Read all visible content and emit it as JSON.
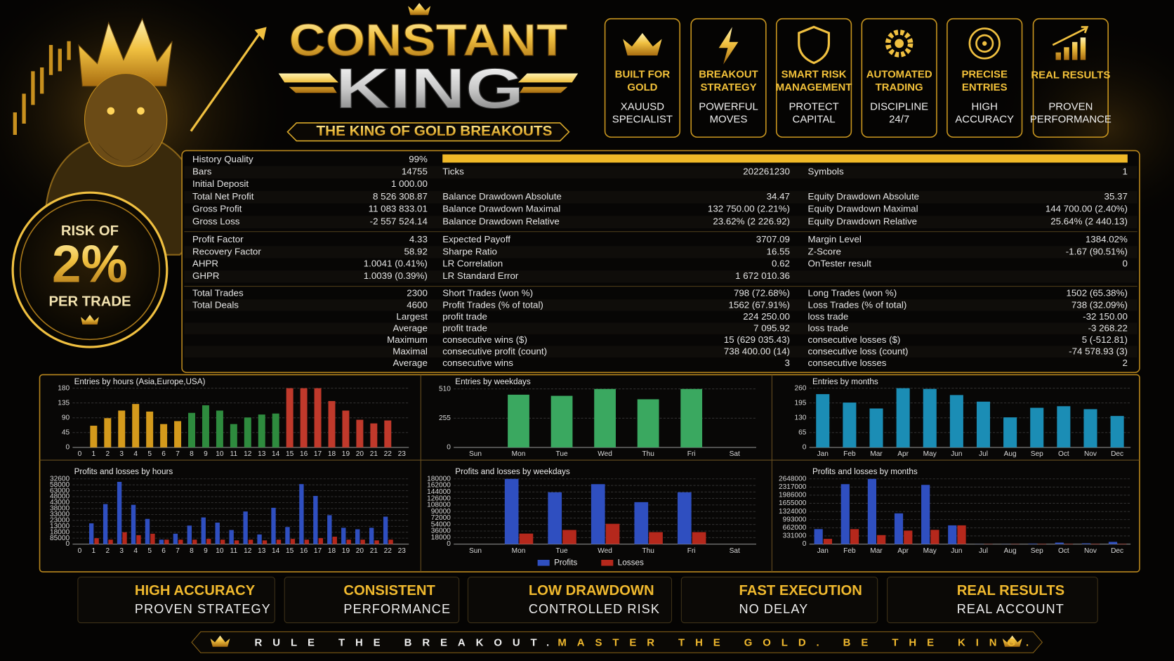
{
  "header": {
    "title_1": "CONSTANT",
    "title_2": "KING",
    "tagline": "THE KING OF GOLD BREAKOUTS"
  },
  "risk_badge": {
    "line_1": "RISK OF",
    "value": "2%",
    "line_2": "PER TRADE"
  },
  "features": [
    {
      "title": [
        "BUILT FOR",
        "GOLD"
      ],
      "subtitle": [
        "XAUUSD",
        "SPECIALIST"
      ]
    },
    {
      "title": [
        "BREAKOUT",
        "STRATEGY"
      ],
      "subtitle": [
        "POWERFUL",
        "MOVES"
      ]
    },
    {
      "title": [
        "SMART RISK",
        "MANAGEMENT"
      ],
      "subtitle": [
        "PROTECT",
        "CAPITAL"
      ]
    },
    {
      "title": [
        "AUTOMATED",
        "TRADING"
      ],
      "subtitle": [
        "DISCIPLINE",
        "24/7"
      ]
    },
    {
      "title": [
        "PRECISE",
        "ENTRIES"
      ],
      "subtitle": [
        "HIGH",
        "ACCURACY"
      ]
    },
    {
      "title": [
        "REAL RESULTS"
      ],
      "subtitle": [
        "PROVEN",
        "PERFORMANCE"
      ]
    }
  ],
  "stats": {
    "sections": [
      {
        "rows": [
          [
            [
              "History Quality",
              "99%"
            ],
            null,
            null
          ],
          [
            [
              "Bars",
              "14755"
            ],
            [
              "Ticks",
              "202261230"
            ],
            [
              "Symbols",
              "1"
            ]
          ],
          [
            [
              "Initial Deposit",
              "1 000.00"
            ],
            null,
            null
          ],
          [
            [
              "Total Net Profit",
              "8 526 308.87"
            ],
            [
              "Balance Drawdown Absolute",
              "34.47"
            ],
            [
              "Equity Drawdown Absolute",
              "35.37"
            ]
          ],
          [
            [
              "Gross Profit",
              "11 083 833.01"
            ],
            [
              "Balance Drawdown Maximal",
              "132 750.00 (2.21%)"
            ],
            [
              "Equity Drawdown Maximal",
              "144 700.00 (2.40%)"
            ]
          ],
          [
            [
              "Gross Loss",
              "-2 557 524.14"
            ],
            [
              "Balance Drawdown Relative",
              "23.62% (2 226.92)"
            ],
            [
              "Equity Drawdown Relative",
              "25.64% (2 440.13)"
            ]
          ]
        ]
      },
      {
        "rows": [
          [
            [
              "Profit Factor",
              "4.33"
            ],
            [
              "Expected Payoff",
              "3707.09"
            ],
            [
              "Margin Level",
              "1384.02%"
            ]
          ],
          [
            [
              "Recovery Factor",
              "58.92"
            ],
            [
              "Sharpe Ratio",
              "16.55"
            ],
            [
              "Z-Score",
              "-1.67 (90.51%)"
            ]
          ],
          [
            [
              "AHPR",
              "1.0041 (0.41%)"
            ],
            [
              "LR Correlation",
              "0.62"
            ],
            [
              "OnTester result",
              "0"
            ]
          ],
          [
            [
              "GHPR",
              "1.0039 (0.39%)"
            ],
            [
              "LR Standard Error",
              "1 672 010.36"
            ],
            null
          ]
        ]
      },
      {
        "rows": [
          [
            [
              "Total Trades",
              "2300"
            ],
            [
              "Short Trades (won %)",
              "798 (72.68%)"
            ],
            [
              "Long Trades (won %)",
              "1502 (65.38%)"
            ]
          ],
          [
            [
              "Total Deals",
              "4600"
            ],
            [
              "Profit Trades (% of total)",
              "1562 (67.91%)"
            ],
            [
              "Loss Trades (% of total)",
              "738 (32.09%)"
            ]
          ],
          [
            [
              null,
              "Largest"
            ],
            [
              "profit trade",
              "224 250.00"
            ],
            [
              "loss trade",
              "-32 150.00"
            ]
          ],
          [
            [
              null,
              "Average"
            ],
            [
              "profit trade",
              "7 095.92"
            ],
            [
              "loss trade",
              "-3 268.22"
            ]
          ],
          [
            [
              null,
              "Maximum"
            ],
            [
              "consecutive wins ($)",
              "15 (629 035.43)"
            ],
            [
              "consecutive losses ($)",
              "5 (-512.81)"
            ]
          ],
          [
            [
              null,
              "Maximal"
            ],
            [
              "consecutive profit (count)",
              "738 400.00 (14)"
            ],
            [
              "consecutive loss (count)",
              "-74 578.93 (3)"
            ]
          ],
          [
            [
              null,
              "Average"
            ],
            [
              "consecutive wins",
              "3"
            ],
            [
              "consecutive losses",
              "2"
            ]
          ]
        ]
      }
    ]
  },
  "charts": [
    {
      "type": "bar",
      "title": "Entries by hours (Asia,Europe,USA)",
      "categories": [
        "0",
        "1",
        "2",
        "3",
        "4",
        "5",
        "6",
        "7",
        "8",
        "9",
        "10",
        "11",
        "12",
        "13",
        "14",
        "15",
        "16",
        "17",
        "18",
        "19",
        "20",
        "21",
        "22",
        "23"
      ],
      "values": [
        0,
        66,
        89,
        112,
        132,
        109,
        71,
        80,
        105,
        128,
        112,
        71,
        91,
        100,
        103,
        180,
        180,
        180,
        141,
        112,
        84,
        73,
        82,
        0
      ],
      "colors": [
        "#d49a1c",
        "#d49a1c",
        "#d49a1c",
        "#d49a1c",
        "#d49a1c",
        "#d49a1c",
        "#d49a1c",
        "#d49a1c",
        "#2e8b3e",
        "#2e8b3e",
        "#2e8b3e",
        "#2e8b3e",
        "#2e8b3e",
        "#2e8b3e",
        "#2e8b3e",
        "#c0392b",
        "#c0392b",
        "#c0392b",
        "#c0392b",
        "#c0392b",
        "#c0392b",
        "#c0392b",
        "#c0392b",
        "#c0392b"
      ],
      "ylim": [
        0,
        180
      ],
      "yticks": [
        0,
        45,
        90,
        135,
        180
      ],
      "grid": true
    },
    {
      "type": "bar",
      "title": "Entries by weekdays",
      "categories": [
        "Sun",
        "Mon",
        "Tue",
        "Wed",
        "Thu",
        "Fri",
        "Sat"
      ],
      "values": [
        0,
        460,
        450,
        510,
        420,
        510,
        0
      ],
      "color": "#3aa860",
      "ylim": [
        0,
        510
      ],
      "yticks": [
        0,
        255,
        510
      ],
      "grid": true
    },
    {
      "type": "bar",
      "title": "Entries by months",
      "categories": [
        "Jan",
        "Feb",
        "Mar",
        "Apr",
        "May",
        "Jun",
        "Jul",
        "Aug",
        "Sep",
        "Oct",
        "Nov",
        "Dec"
      ],
      "values": [
        234,
        197,
        171,
        260,
        257,
        230,
        201,
        132,
        174,
        181,
        168,
        138
      ],
      "color": "#1b8db5",
      "ylim": [
        0,
        260
      ],
      "yticks": [
        0,
        65,
        130,
        195,
        260
      ],
      "grid": true
    },
    {
      "type": "bar",
      "title": "Profits and losses by hours",
      "categories": [
        "0",
        "1",
        "2",
        "3",
        "4",
        "5",
        "6",
        "7",
        "8",
        "9",
        "10",
        "11",
        "12",
        "13",
        "14",
        "15",
        "16",
        "17",
        "18",
        "19",
        "20",
        "21",
        "22",
        "23"
      ],
      "series": [
        {
          "color": "#2f4fc0",
          "values": [
            0,
            21000,
            40500,
            63000,
            39750,
            25500,
            4500,
            10500,
            18750,
            27000,
            21750,
            14250,
            33000,
            9750,
            36750,
            17250,
            60750,
            48750,
            29250,
            16500,
            15000,
            16500,
            27750,
            0
          ]
        },
        {
          "color": "#b5281c",
          "values": [
            0,
            6000,
            4500,
            12000,
            9000,
            10500,
            4500,
            4500,
            4500,
            5250,
            4500,
            3750,
            4500,
            3750,
            4500,
            5250,
            4500,
            6000,
            7500,
            4500,
            4500,
            3750,
            4500,
            0
          ]
        }
      ],
      "ylim": [
        0,
        66000
      ],
      "yticks": [
        0,
        {
          "value": 6000,
          "label": "85000"
        },
        {
          "value": 12000,
          "label": "18000"
        },
        {
          "value": 18000,
          "label": "13000"
        },
        {
          "value": 24000,
          "label": "23000"
        },
        {
          "value": 30000,
          "label": "33000"
        },
        {
          "value": 36000,
          "label": "38000"
        },
        {
          "value": 42000,
          "label": "43000"
        },
        {
          "value": 48000,
          "label": "48000"
        },
        {
          "value": 54000,
          "label": "63000"
        },
        {
          "value": 60000,
          "label": "58000"
        },
        {
          "value": 66000,
          "label": "32600"
        }
      ],
      "grid": true
    },
    {
      "type": "bar",
      "title": "Profits and losses by weekdays",
      "categories": [
        "Sun",
        "Mon",
        "Tue",
        "Wed",
        "Thu",
        "Fri",
        "Sat"
      ],
      "series": [
        {
          "name": "Profits",
          "color": "#2f4fc0",
          "values": [
            0,
            180000,
            143000,
            165500,
            115800,
            143000,
            0
          ]
        },
        {
          "name": "Losses",
          "color": "#b5281c",
          "values": [
            0,
            29000,
            39000,
            56000,
            33000,
            33000,
            0
          ]
        }
      ],
      "ylim": [
        0,
        180000
      ],
      "yticks": [
        0,
        18000,
        36000,
        54000,
        72000,
        90000,
        108000,
        126000,
        144000,
        162000,
        180000
      ],
      "grid": true
    },
    {
      "type": "bar",
      "title": "Profits and losses by months",
      "categories": [
        "Jan",
        "Feb",
        "Mar",
        "Apr",
        "May",
        "Jun",
        "Jul",
        "Aug",
        "Sep",
        "Oct",
        "Nov",
        "Dec"
      ],
      "series": [
        {
          "color": "#2f4fc0",
          "values": [
            609000,
            2435000,
            2648000,
            1248000,
            2405000,
            761000,
            5000,
            5000,
            20000,
            60000,
            30000,
            90000
          ]
        },
        {
          "color": "#b5281c",
          "values": [
            213000,
            609000,
            365000,
            548000,
            578000,
            761000,
            10000,
            10000,
            15000,
            15000,
            15000,
            15000
          ]
        }
      ],
      "ylim": [
        0,
        2648000
      ],
      "yticks": [
        0,
        331000,
        662000,
        993000,
        1324000,
        1655000,
        1986000,
        2317000,
        2648000
      ],
      "grid": true
    }
  ],
  "highlights": [
    {
      "title": "HIGH ACCURACY",
      "subtitle": "PROVEN STRATEGY"
    },
    {
      "title": "CONSISTENT",
      "subtitle": "PERFORMANCE"
    },
    {
      "title": "LOW DRAWDOWN",
      "subtitle": "CONTROLLED RISK"
    },
    {
      "title": "FAST EXECUTION",
      "subtitle": "NO DELAY"
    },
    {
      "title": "REAL RESULTS",
      "subtitle": "REAL ACCOUNT"
    }
  ],
  "footer": {
    "part_1": "RULE THE BREAKOUT.",
    "part_2": "MASTER THE GOLD. BE THE KING."
  }
}
